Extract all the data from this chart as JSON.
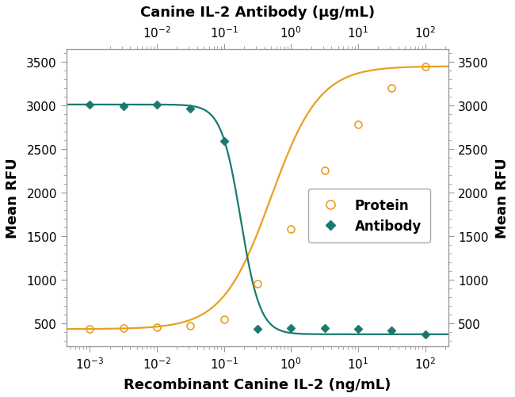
{
  "title_top": "Canine IL-2 Antibody (μg/mL)",
  "xlabel": "Recombinant Canine IL-2 (ng/mL)",
  "ylabel_left": "Mean RFU",
  "ylabel_right": "Mean RFU",
  "ylim": [
    230,
    3650
  ],
  "yticks": [
    500,
    1000,
    1500,
    2000,
    2500,
    3000,
    3500
  ],
  "xlim": [
    -3.35,
    2.35
  ],
  "protein_color": "#E8A020",
  "antibody_color": "#1A7A6E",
  "background": "#FFFFFF",
  "protein_data_x": [
    -3.0,
    -2.5,
    -2.0,
    -1.5,
    -1.0,
    -0.5,
    0.0,
    0.5,
    1.0,
    1.5,
    2.0
  ],
  "protein_data_y": [
    430,
    440,
    450,
    465,
    540,
    950,
    1580,
    2250,
    2780,
    3200,
    3450
  ],
  "antibody_data_x": [
    -3.0,
    -2.5,
    -2.0,
    -1.5,
    -1.0,
    -0.5,
    0.0,
    0.5,
    1.0,
    1.5,
    2.0
  ],
  "antibody_data_y": [
    3010,
    2990,
    3010,
    2960,
    2590,
    430,
    440,
    440,
    430,
    410,
    370
  ],
  "bottom_tick_pos": [
    -3,
    -2,
    -1,
    0,
    1,
    2
  ],
  "bottom_tick_labels": [
    "$10^{-3}$",
    "$10^{-2}$",
    "$10^{-1}$",
    "$10^{0}$",
    "$10^{1}$",
    "$10^{2}$"
  ],
  "top_tick_pos": [
    -2,
    -1,
    0,
    1,
    2
  ],
  "top_tick_labels": [
    "$10^{-2}$",
    "$10^{-1}$",
    "$10^{0}$",
    "$10^{1}$",
    "$10^{2}$"
  ],
  "spine_color": "#999999",
  "tick_label_fontsize": 11,
  "axis_label_fontsize": 13,
  "legend_fontsize": 12
}
